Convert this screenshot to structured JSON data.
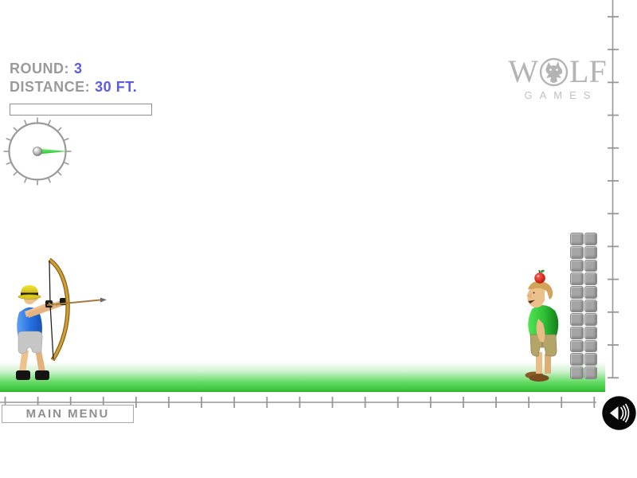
{
  "hud": {
    "round_label": "ROUND:",
    "round_value": "3",
    "distance_label": "DISTANCE:",
    "distance_value": "30 FT.",
    "power_meter_value_percent": 0
  },
  "gauge": {
    "icon": "aim-gauge",
    "needle_direction": "right",
    "needle_color": "#2ed32e"
  },
  "logo": {
    "brand_prefix": "W",
    "brand_suffix": "LF",
    "brand_o_icon": "wolf-head-icon",
    "subtitle": "GAMES",
    "color": "#b4b4b4"
  },
  "buttons": {
    "main_menu_label": "MAIN MENU"
  },
  "sound_button": {
    "icon": "speaker-icon"
  },
  "scene": {
    "sprites": [
      "archer-aiming-right",
      "man-with-apple-on-head",
      "brick-column"
    ],
    "ground_color": "#3fca3f"
  },
  "colors": {
    "hud_label": "#9a9a9a",
    "hud_value": "#5c5ce0",
    "ruler": "#979797",
    "logo": "#b4b4b4"
  }
}
